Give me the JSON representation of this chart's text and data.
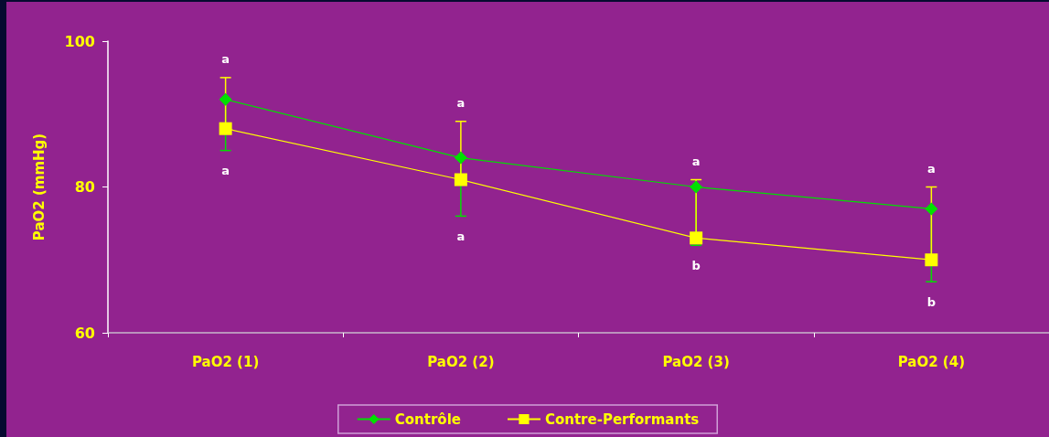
{
  "chart_data": {
    "type": "line",
    "ylabel": "PaO2 (mmHg)",
    "categories": [
      "PaO2 (1)",
      "PaO2 (2)",
      "PaO2 (3)",
      "PaO2 (4)"
    ],
    "series": [
      {
        "name": "Contrôle",
        "color": "#00e000",
        "marker": "diamond",
        "values": [
          92,
          84,
          80,
          77
        ],
        "errors": [
          [
            85,
            92
          ],
          [
            76,
            84
          ],
          [
            72,
            80
          ],
          [
            67,
            77
          ]
        ]
      },
      {
        "name": "Contre-Performants",
        "color": "#ffff00",
        "marker": "square",
        "values": [
          88,
          81,
          73,
          70
        ],
        "errors": [
          [
            88,
            95
          ],
          [
            81,
            89
          ],
          [
            73,
            81
          ],
          [
            70,
            80
          ]
        ]
      }
    ],
    "ylim": [
      60,
      100
    ],
    "yticks": [
      60,
      80,
      100
    ],
    "grid": false,
    "legend": "bottom",
    "line_style": "solid",
    "annotations": [
      "a",
      "a",
      "a",
      "a",
      "a",
      "b",
      "a",
      "b"
    ]
  }
}
